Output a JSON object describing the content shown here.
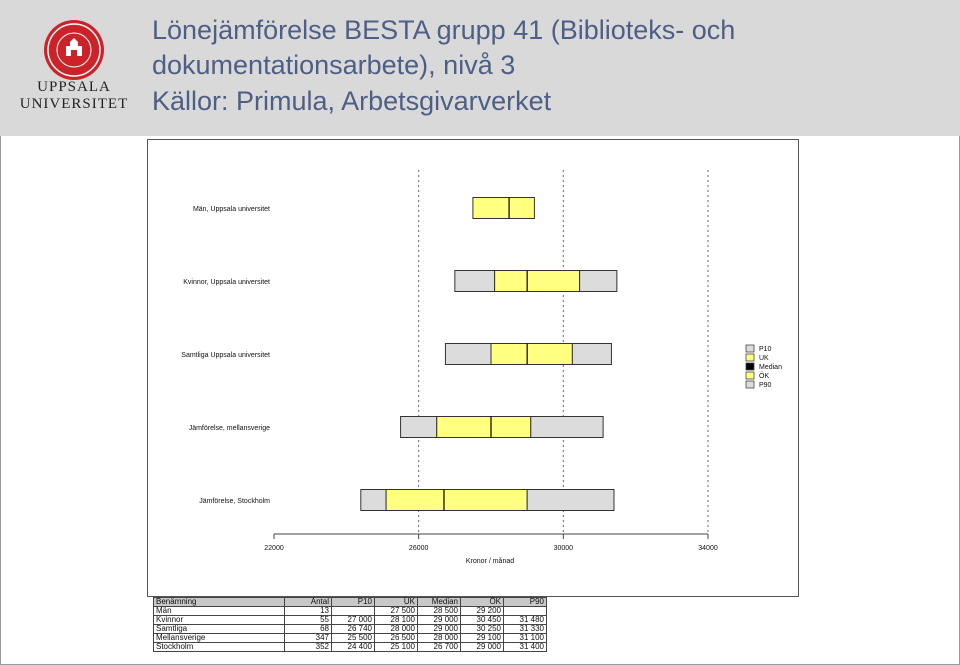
{
  "header": {
    "title_line1": "Lönejämförelse BESTA grupp 41 (Biblioteks- och",
    "title_line2": "dokumentationsarbete), nivå 3",
    "title_line3": "Källor: Primula, Arbetsgivarverket",
    "logo_line1": "UPPSALA",
    "logo_line2": "UNIVERSITET",
    "logo_color": "#cc2229",
    "background": "#d9d9d9",
    "title_color": "#4d5f86"
  },
  "chart_data": {
    "type": "box",
    "orientation": "horizontal",
    "xlabel": "Kronor / månad",
    "xlim": [
      22000,
      34000
    ],
    "xticks": [
      22000,
      26000,
      30000,
      34000
    ],
    "gridlines_x": [
      26000,
      30000,
      34000
    ],
    "categories": [
      "Män, Uppsala universitet",
      "Kvinnor, Uppsala universitet",
      "Samtliga Uppsala universitet",
      "Jämförelse, mellansverige",
      "Jämförelse, Stockholm"
    ],
    "series": [
      {
        "name": "P10",
        "values": [
          null,
          27000,
          26740,
          25500,
          24400
        ]
      },
      {
        "name": "UK",
        "values": [
          27500,
          28100,
          28000,
          26500,
          25100
        ]
      },
      {
        "name": "Median",
        "values": [
          28500,
          29000,
          29000,
          28000,
          26700
        ]
      },
      {
        "name": "ÖK",
        "values": [
          29200,
          30450,
          30250,
          29100,
          29000
        ]
      },
      {
        "name": "P90",
        "values": [
          null,
          31480,
          31330,
          31100,
          31400
        ]
      }
    ],
    "legend": [
      "P10",
      "UK",
      "Median",
      "ÖK",
      "P90"
    ],
    "legend_position": "right",
    "colors": {
      "outer": "#dcdcdc",
      "inner": "#ffff80",
      "median": "#000000",
      "border": "#333333"
    }
  },
  "table": {
    "headers": [
      "Benämning",
      "Antal",
      "P10",
      "UK",
      "Median",
      "ÖK",
      "P90"
    ],
    "rows": [
      [
        "Män",
        "13",
        "",
        "27 500",
        "28 500",
        "29 200",
        ""
      ],
      [
        "Kvinnor",
        "55",
        "27 000",
        "28 100",
        "29 000",
        "30 450",
        "31 480"
      ],
      [
        "Samtliga",
        "68",
        "26 740",
        "28 000",
        "29 000",
        "30 250",
        "31 330"
      ],
      [
        "Mellansverige",
        "347",
        "25 500",
        "26 500",
        "28 000",
        "29 100",
        "31 100"
      ],
      [
        "Stockholm",
        "352",
        "24 400",
        "25 100",
        "26 700",
        "29 000",
        "31 400"
      ]
    ]
  }
}
